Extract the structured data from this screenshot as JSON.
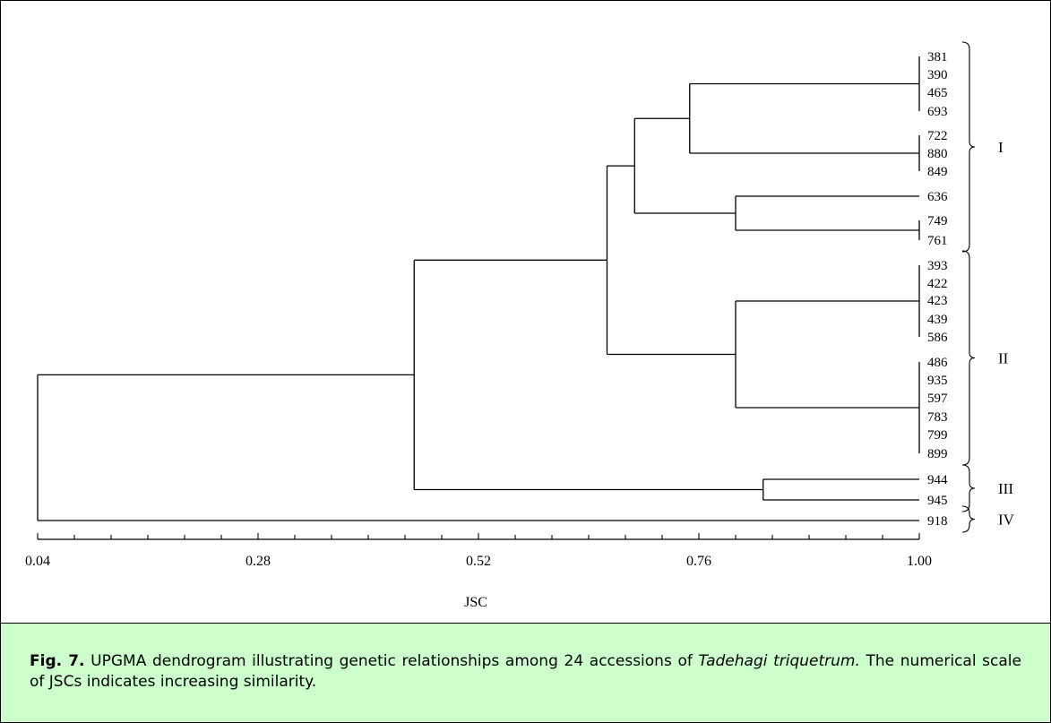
{
  "chart_data": {
    "type": "dendrogram",
    "title": "",
    "xlabel": "JSC",
    "ylabel": "",
    "xlim": [
      0.04,
      1.0
    ],
    "x_ticks": [
      "0.04",
      "0.28",
      "0.52",
      "0.76",
      "1.00"
    ],
    "leaves": [
      "381",
      "390",
      "465",
      "693",
      "722",
      "880",
      "849",
      "636",
      "749",
      "761",
      "393",
      "422",
      "423",
      "439",
      "586",
      "486",
      "935",
      "597",
      "783",
      "799",
      "899",
      "944",
      "945",
      "918"
    ],
    "merges": [
      {
        "id": "A",
        "children": [
          "381",
          "390",
          "465",
          "693"
        ],
        "similarity": 1.0
      },
      {
        "id": "B",
        "children": [
          "722",
          "880",
          "849"
        ],
        "similarity": 1.0
      },
      {
        "id": "C",
        "children": [
          "749",
          "761"
        ],
        "similarity": 1.0
      },
      {
        "id": "D",
        "children": [
          "393",
          "422",
          "423",
          "439",
          "586"
        ],
        "similarity": 1.0
      },
      {
        "id": "E",
        "children": [
          "486",
          "935",
          "597",
          "783",
          "799",
          "899"
        ],
        "similarity": 1.0
      },
      {
        "id": "F",
        "children": [
          "A",
          "B"
        ],
        "similarity": 0.75
      },
      {
        "id": "G",
        "children": [
          "636",
          "C"
        ],
        "similarity": 0.8
      },
      {
        "id": "H",
        "children": [
          "F",
          "G"
        ],
        "similarity": 0.69
      },
      {
        "id": "I",
        "children": [
          "D",
          "E"
        ],
        "similarity": 0.8
      },
      {
        "id": "J",
        "children": [
          "H",
          "I"
        ],
        "similarity": 0.66
      },
      {
        "id": "K",
        "children": [
          "944",
          "945"
        ],
        "similarity": 0.83
      },
      {
        "id": "L",
        "children": [
          "J",
          "K"
        ],
        "similarity": 0.45
      },
      {
        "id": "M",
        "children": [
          "L",
          "918"
        ],
        "similarity": 0.04
      }
    ],
    "clusters": [
      {
        "label": "I",
        "first": "381",
        "last": "761"
      },
      {
        "label": "II",
        "first": "393",
        "last": "899"
      },
      {
        "label": "III",
        "first": "944",
        "last": "945"
      },
      {
        "label": "IV",
        "first": "918",
        "last": "918"
      }
    ]
  },
  "caption": {
    "fig_label": "Fig. 7.",
    "text_before_species": " UPGMA dendrogram illustrating genetic relationships among 24 accessions of ",
    "species": "Tadehagi triquetrum.",
    "text_after_species": " The numerical scale of JSCs indicates increasing similarity."
  }
}
